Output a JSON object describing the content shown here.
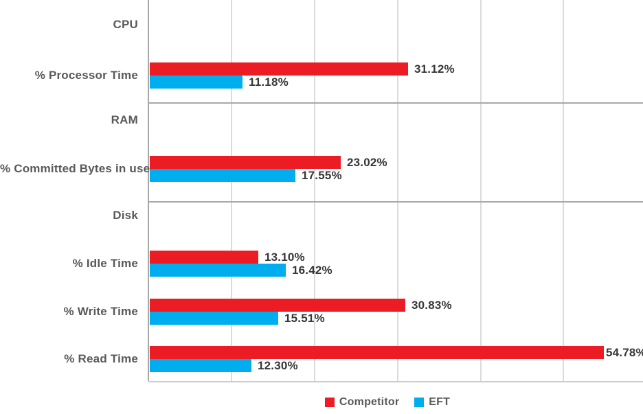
{
  "chart_data": {
    "type": "bar",
    "orientation": "horizontal",
    "title": "",
    "unit": "%",
    "axis": {
      "min": 0,
      "max": 60,
      "gridline_interval": 10,
      "tick_labels_visible": false,
      "grid": true
    },
    "legend_position": "bottom-center",
    "legend": [
      {
        "label": "Competitor",
        "color": "#EC1C24"
      },
      {
        "label": "EFT",
        "color": "#00AEEF"
      }
    ],
    "categories": [
      "% Processor Time",
      "% Committed Bytes in use",
      "% Idle Time",
      "% Write Time",
      "% Read Time"
    ],
    "series": [
      {
        "name": "Competitor",
        "values": [
          31.12,
          23.02,
          13.1,
          30.83,
          54.78
        ]
      },
      {
        "name": "EFT",
        "values": [
          11.18,
          17.55,
          16.42,
          15.51,
          12.3
        ]
      }
    ],
    "groups": [
      {
        "name": "CPU",
        "metrics": [
          {
            "label": "% Processor Time",
            "values": {
              "competitor": 31.12,
              "eft": 11.18
            },
            "display": {
              "competitor": "31.12%",
              "eft": "11.18%"
            }
          }
        ]
      },
      {
        "name": "RAM",
        "metrics": [
          {
            "label": "% Committed Bytes in use",
            "values": {
              "competitor": 23.02,
              "eft": 17.55
            },
            "display": {
              "competitor": "23.02%",
              "eft": "17.55%"
            }
          }
        ]
      },
      {
        "name": "Disk",
        "metrics": [
          {
            "label": "% Idle Time",
            "values": {
              "competitor": 13.1,
              "eft": 16.42
            },
            "display": {
              "competitor": "13.10%",
              "eft": "16.42%"
            }
          },
          {
            "label": "% Write Time",
            "values": {
              "competitor": 30.83,
              "eft": 15.51
            },
            "display": {
              "competitor": "30.83%",
              "eft": "15.51%"
            }
          },
          {
            "label": "% Read Time",
            "values": {
              "competitor": 54.78,
              "eft": 12.3
            },
            "display": {
              "competitor": "54.78%",
              "eft": "12.30%"
            }
          }
        ]
      }
    ]
  }
}
